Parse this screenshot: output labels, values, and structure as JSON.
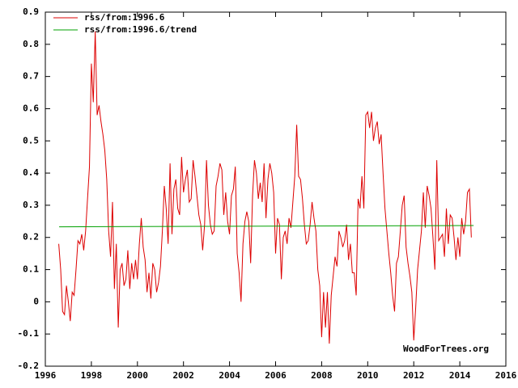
{
  "chart_data": {
    "type": "line",
    "watermark": "WoodForTrees.org",
    "xlim": [
      1996,
      2016
    ],
    "xticks": [
      1996,
      1998,
      2000,
      2002,
      2004,
      2006,
      2008,
      2010,
      2012,
      2014,
      2016
    ],
    "ylim": [
      -0.2,
      0.9
    ],
    "yticks": [
      -0.2,
      -0.1,
      0,
      0.1,
      0.2,
      0.3,
      0.4,
      0.5,
      0.6,
      0.7,
      0.8,
      0.9
    ],
    "legend": "top-left",
    "x": [
      1996.583,
      1996.667,
      1996.75,
      1996.833,
      1996.917,
      1997,
      1997.083,
      1997.167,
      1997.25,
      1997.333,
      1997.417,
      1997.5,
      1997.583,
      1997.667,
      1997.75,
      1997.833,
      1997.917,
      1998,
      1998.083,
      1998.167,
      1998.25,
      1998.333,
      1998.417,
      1998.5,
      1998.583,
      1998.667,
      1998.75,
      1998.833,
      1998.917,
      1999,
      1999.083,
      1999.167,
      1999.25,
      1999.333,
      1999.417,
      1999.5,
      1999.583,
      1999.667,
      1999.75,
      1999.833,
      1999.917,
      2000,
      2000.083,
      2000.167,
      2000.25,
      2000.333,
      2000.417,
      2000.5,
      2000.583,
      2000.667,
      2000.75,
      2000.833,
      2000.917,
      2001,
      2001.083,
      2001.167,
      2001.25,
      2001.333,
      2001.417,
      2001.5,
      2001.583,
      2001.667,
      2001.75,
      2001.833,
      2001.917,
      2002,
      2002.083,
      2002.167,
      2002.25,
      2002.333,
      2002.417,
      2002.5,
      2002.583,
      2002.667,
      2002.75,
      2002.833,
      2002.917,
      2003,
      2003.083,
      2003.167,
      2003.25,
      2003.333,
      2003.417,
      2003.5,
      2003.583,
      2003.667,
      2003.75,
      2003.833,
      2003.917,
      2004,
      2004.083,
      2004.167,
      2004.25,
      2004.333,
      2004.417,
      2004.5,
      2004.583,
      2004.667,
      2004.75,
      2004.833,
      2004.917,
      2005,
      2005.083,
      2005.167,
      2005.25,
      2005.333,
      2005.417,
      2005.5,
      2005.583,
      2005.667,
      2005.75,
      2005.833,
      2005.917,
      2006,
      2006.083,
      2006.167,
      2006.25,
      2006.333,
      2006.417,
      2006.5,
      2006.583,
      2006.667,
      2006.75,
      2006.833,
      2006.917,
      2007,
      2007.083,
      2007.167,
      2007.25,
      2007.333,
      2007.417,
      2007.5,
      2007.583,
      2007.667,
      2007.75,
      2007.833,
      2007.917,
      2008,
      2008.083,
      2008.167,
      2008.25,
      2008.333,
      2008.417,
      2008.5,
      2008.583,
      2008.667,
      2008.75,
      2008.833,
      2008.917,
      2009,
      2009.083,
      2009.167,
      2009.25,
      2009.333,
      2009.417,
      2009.5,
      2009.583,
      2009.667,
      2009.75,
      2009.833,
      2009.917,
      2010,
      2010.083,
      2010.167,
      2010.25,
      2010.333,
      2010.417,
      2010.5,
      2010.583,
      2010.667,
      2010.75,
      2010.833,
      2010.917,
      2011,
      2011.083,
      2011.167,
      2011.25,
      2011.333,
      2011.417,
      2011.5,
      2011.583,
      2011.667,
      2011.75,
      2011.833,
      2011.917,
      2012,
      2012.083,
      2012.167,
      2012.25,
      2012.333,
      2012.417,
      2012.5,
      2012.583,
      2012.667,
      2012.75,
      2012.833,
      2012.917,
      2013,
      2013.083,
      2013.167,
      2013.25,
      2013.333,
      2013.417,
      2013.5,
      2013.583,
      2013.667,
      2013.75,
      2013.833,
      2013.917,
      2014,
      2014.083,
      2014.167,
      2014.25,
      2014.333,
      2014.417,
      2014.5
    ],
    "series": [
      {
        "name": "rss/from:1996.6",
        "color": "#dd0000",
        "values": [
          0.18,
          0.1,
          -0.03,
          -0.04,
          0.05,
          0.0,
          -0.06,
          0.03,
          0.02,
          0.1,
          0.19,
          0.18,
          0.21,
          0.16,
          0.22,
          0.32,
          0.42,
          0.74,
          0.62,
          0.84,
          0.58,
          0.61,
          0.56,
          0.52,
          0.47,
          0.38,
          0.22,
          0.14,
          0.31,
          0.04,
          0.18,
          -0.08,
          0.1,
          0.12,
          0.05,
          0.07,
          0.16,
          0.04,
          0.12,
          0.07,
          0.13,
          0.07,
          0.18,
          0.26,
          0.17,
          0.13,
          0.03,
          0.09,
          0.01,
          0.12,
          0.1,
          0.03,
          0.06,
          0.11,
          0.22,
          0.36,
          0.29,
          0.18,
          0.43,
          0.21,
          0.35,
          0.38,
          0.29,
          0.27,
          0.45,
          0.34,
          0.38,
          0.41,
          0.31,
          0.32,
          0.44,
          0.39,
          0.33,
          0.27,
          0.24,
          0.16,
          0.24,
          0.44,
          0.3,
          0.24,
          0.21,
          0.22,
          0.36,
          0.39,
          0.43,
          0.41,
          0.27,
          0.34,
          0.25,
          0.21,
          0.33,
          0.35,
          0.42,
          0.15,
          0.09,
          0.0,
          0.18,
          0.25,
          0.28,
          0.25,
          0.12,
          0.33,
          0.44,
          0.4,
          0.32,
          0.37,
          0.31,
          0.43,
          0.26,
          0.38,
          0.43,
          0.4,
          0.34,
          0.15,
          0.26,
          0.24,
          0.07,
          0.2,
          0.22,
          0.18,
          0.26,
          0.23,
          0.31,
          0.39,
          0.55,
          0.39,
          0.38,
          0.32,
          0.24,
          0.18,
          0.19,
          0.24,
          0.31,
          0.26,
          0.22,
          0.1,
          0.05,
          -0.11,
          0.03,
          -0.08,
          0.03,
          -0.13,
          0.02,
          0.08,
          0.14,
          0.11,
          0.22,
          0.2,
          0.17,
          0.19,
          0.24,
          0.13,
          0.18,
          0.09,
          0.09,
          0.02,
          0.32,
          0.29,
          0.39,
          0.29,
          0.58,
          0.59,
          0.54,
          0.59,
          0.5,
          0.54,
          0.56,
          0.49,
          0.52,
          0.4,
          0.29,
          0.22,
          0.15,
          0.09,
          0.02,
          -0.03,
          0.12,
          0.14,
          0.22,
          0.3,
          0.33,
          0.17,
          0.12,
          0.08,
          0.03,
          -0.12,
          -0.02,
          0.1,
          0.16,
          0.22,
          0.34,
          0.23,
          0.36,
          0.33,
          0.29,
          0.2,
          0.1,
          0.44,
          0.19,
          0.2,
          0.21,
          0.14,
          0.29,
          0.18,
          0.27,
          0.26,
          0.2,
          0.13,
          0.2,
          0.14,
          0.26,
          0.21,
          0.25,
          0.34,
          0.35,
          0.2
        ]
      },
      {
        "name": "rss/from:1996.6/trend",
        "color": "#00a000",
        "x": [
          1996.6,
          2014.6
        ],
        "values": [
          0.233,
          0.237
        ]
      }
    ]
  }
}
